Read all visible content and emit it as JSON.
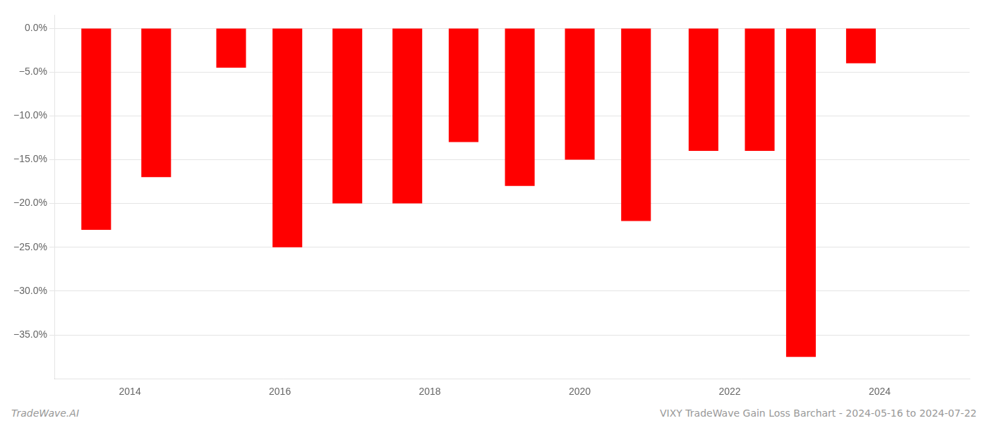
{
  "chart_data": {
    "type": "bar",
    "x": [
      2013.55,
      2014.35,
      2015.35,
      2016.1,
      2016.9,
      2017.7,
      2018.45,
      2019.2,
      2020.0,
      2020.75,
      2021.65,
      2022.4,
      2022.95,
      2023.75
    ],
    "values": [
      -23.0,
      -17.0,
      -4.5,
      -25.0,
      -20.0,
      -20.0,
      -13.0,
      -18.0,
      -15.0,
      -22.0,
      -14.0,
      -14.0,
      -37.5,
      -4.0
    ],
    "color": "#ff0000",
    "xlim": [
      2013.0,
      2025.2
    ],
    "xticks": [
      2014,
      2016,
      2018,
      2020,
      2022,
      2024
    ],
    "ylim": [
      -40,
      1.5
    ],
    "yticks": [
      {
        "value": 0,
        "label": "0.0%"
      },
      {
        "value": -5,
        "label": "−5.0%"
      },
      {
        "value": -10,
        "label": "−10.0%"
      },
      {
        "value": -15,
        "label": "−15.0%"
      },
      {
        "value": -20,
        "label": "−20.0%"
      },
      {
        "value": -25,
        "label": "−25.0%"
      },
      {
        "value": -30,
        "label": "−30.0%"
      },
      {
        "value": -35,
        "label": "−35.0%"
      }
    ],
    "grid": true,
    "annotations": [
      "TradeWave.AI",
      "VIXY TradeWave Gain Loss Barchart - 2024-05-16 to 2024-07-22"
    ]
  }
}
